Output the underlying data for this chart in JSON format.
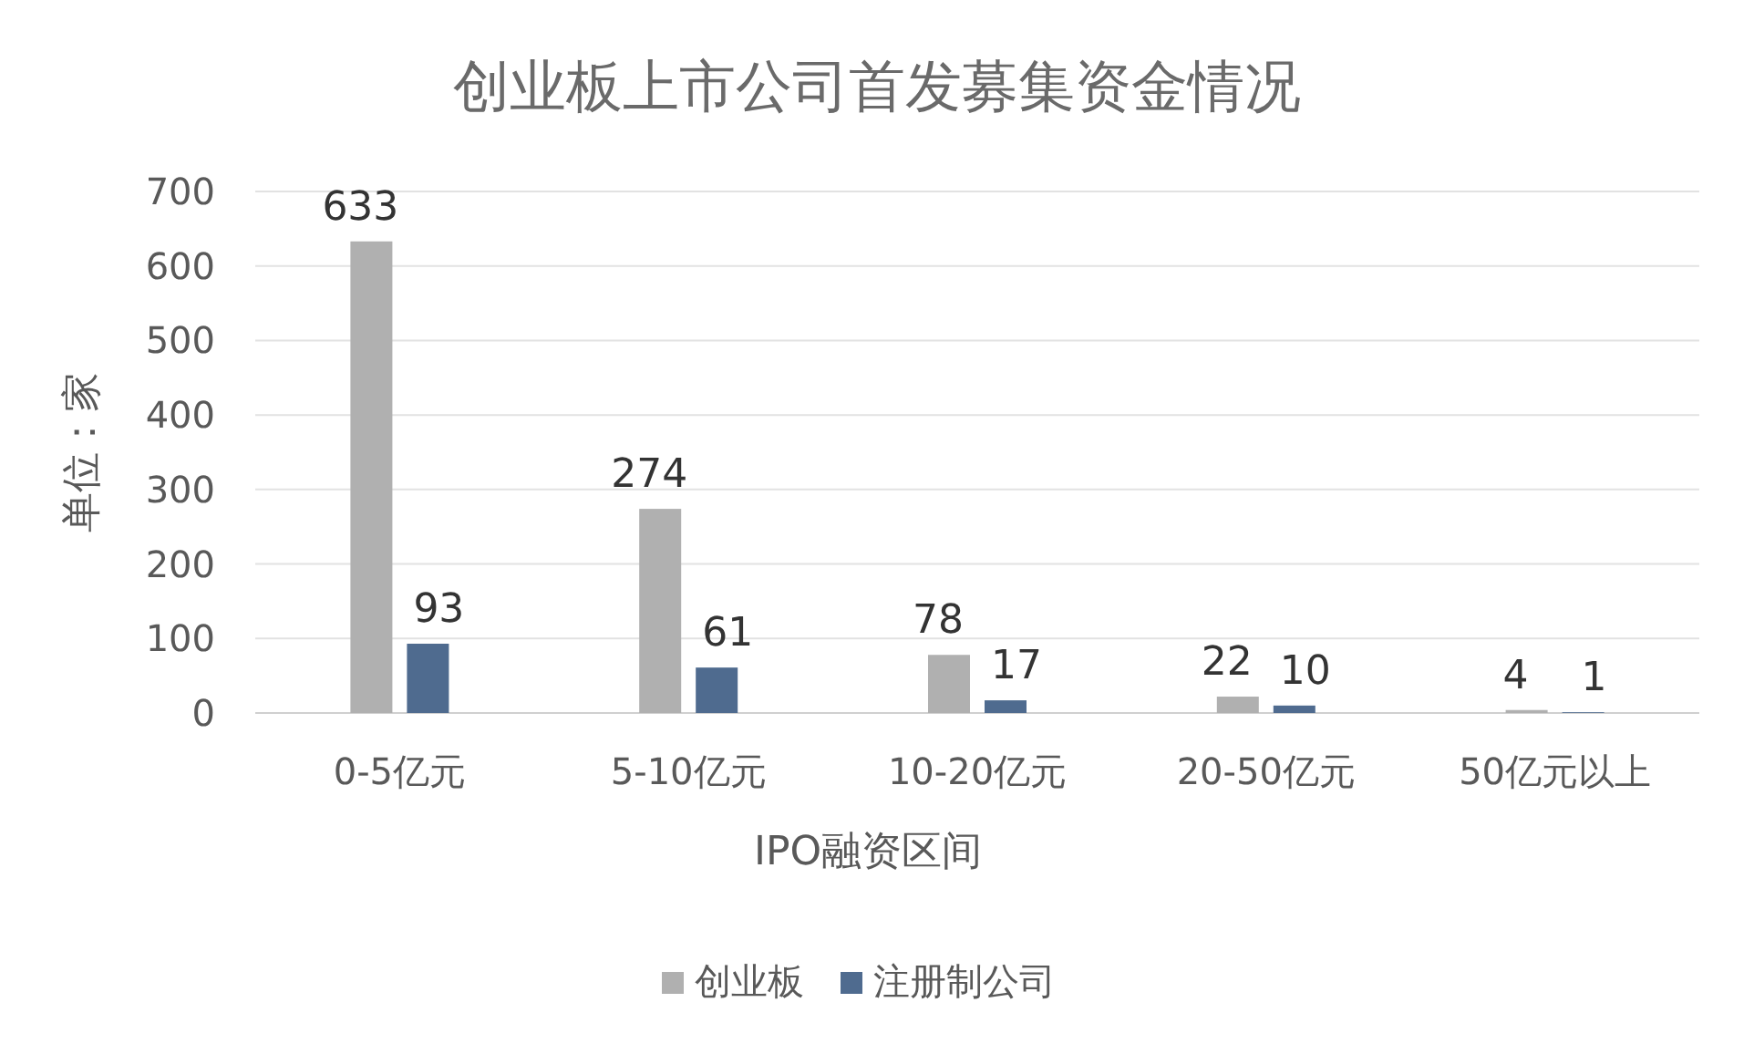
{
  "chart_data": {
    "type": "bar",
    "title": "创业板上市公司首发募集资金情况",
    "xlabel": "IPO融资区间",
    "ylabel": "单位：家",
    "categories": [
      "0-5亿元",
      "5-10亿元",
      "10-20亿元",
      "20-50亿元",
      "50亿元以上"
    ],
    "series": [
      {
        "name": "创业板",
        "color": "#b0b0b0",
        "values": [
          633,
          274,
          78,
          22,
          4
        ]
      },
      {
        "name": "注册制公司",
        "color": "#4f6b8f",
        "values": [
          93,
          61,
          17,
          10,
          1
        ]
      }
    ],
    "ylim": [
      0,
      700
    ],
    "yticks": [
      0,
      100,
      200,
      300,
      400,
      500,
      600,
      700
    ],
    "grid": "y",
    "legend": "bottom",
    "data_labels": true
  }
}
